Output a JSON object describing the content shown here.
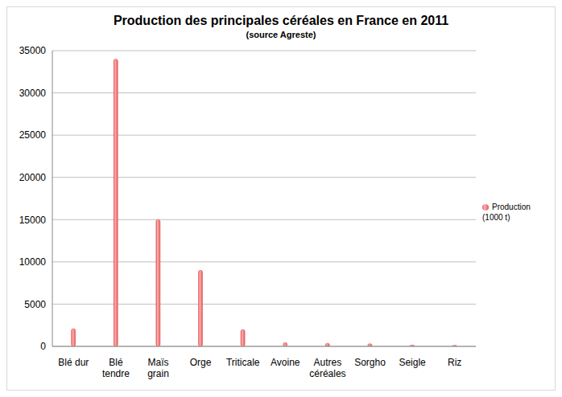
{
  "chart_data": {
    "type": "bar",
    "title": "Production des principales céréales en France en 2011",
    "subtitle": "(source Agreste)",
    "categories": [
      "Blé dur",
      "Blé tendre",
      "Maïs grain",
      "Orge",
      "Triticale",
      "Avoine",
      "Autres céréales",
      "Sorgho",
      "Seigle",
      "Riz"
    ],
    "series": [
      {
        "name": "Production (1000 t)",
        "color": "#e05a5a",
        "values": [
          2100,
          34000,
          15000,
          9000,
          2000,
          450,
          350,
          300,
          150,
          120
        ]
      }
    ],
    "ylim": [
      0,
      35000
    ],
    "yticks": [
      0,
      5000,
      10000,
      15000,
      20000,
      25000,
      30000,
      35000
    ],
    "grid": true,
    "legend": "right"
  }
}
